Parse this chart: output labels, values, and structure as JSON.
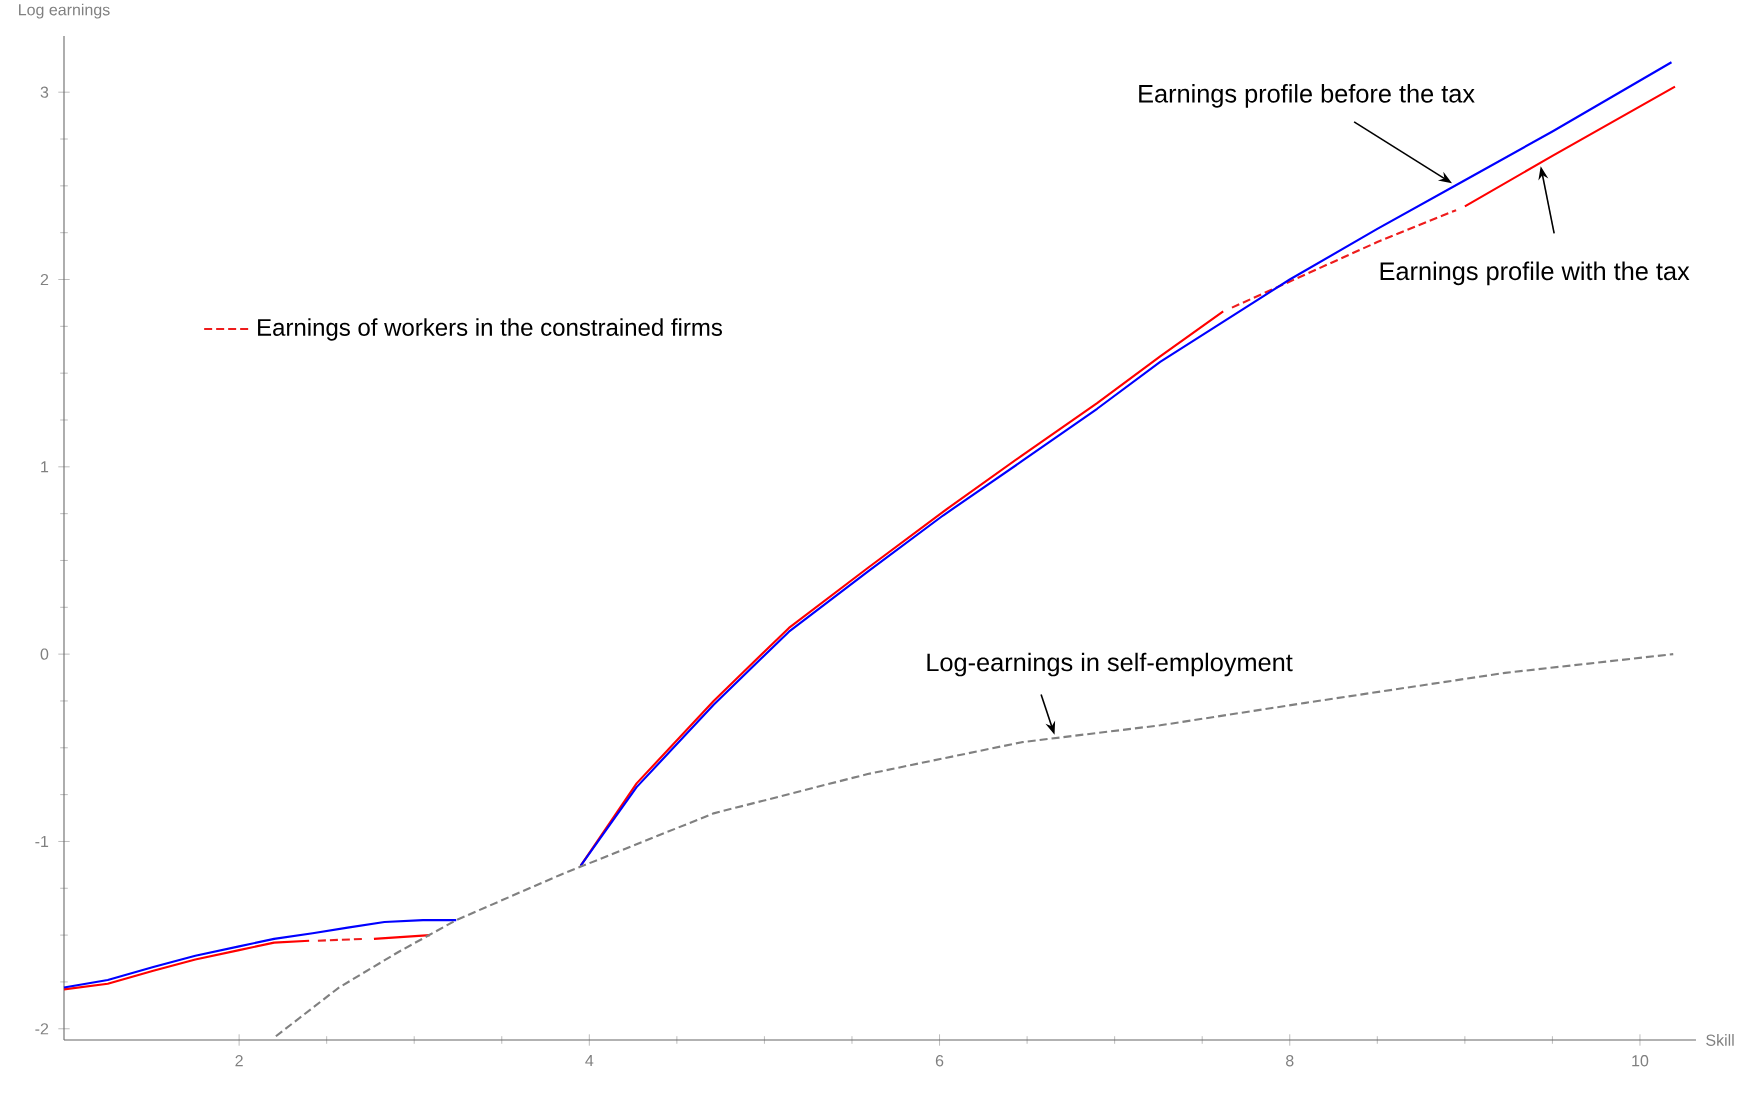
{
  "chart_data": {
    "type": "line",
    "xlabel": "Skill",
    "ylabel": "Log earnings",
    "xlim": [
      1,
      10.32
    ],
    "ylim": [
      -2.06,
      3.3
    ],
    "xticks": [
      2,
      4,
      6,
      8,
      10
    ],
    "yticks": [
      -2,
      -1,
      0,
      1,
      2,
      3
    ],
    "legend": "top left",
    "series": [
      {
        "color": "#ff0000",
        "line_style": "solid",
        "x": [
          1,
          1.25,
          1.51,
          1.75,
          2,
          2.2,
          2.4,
          null,
          2.77,
          3.09,
          null,
          3.95,
          4.27,
          4.71,
          5.14,
          5.59,
          6.02,
          6.47,
          6.9,
          7.26,
          7.62,
          null,
          9.0,
          9.5,
          10.2
        ],
        "values": [
          -1.79,
          -1.76,
          -1.69,
          -1.63,
          -1.58,
          -1.54,
          -1.53,
          null,
          -1.52,
          -1.5,
          null,
          -1.13,
          -0.69,
          -0.25,
          0.14,
          0.46,
          0.76,
          1.06,
          1.34,
          1.59,
          1.83,
          null,
          2.39,
          2.66,
          3.03
        ]
      },
      {
        "name": "Earnings of workers in the constrained firms",
        "color": "#ee1c1c",
        "line_style": "dashed",
        "x": [
          2.45,
          2.72,
          null,
          7.67,
          8.5,
          8.95
        ],
        "values": [
          -1.53,
          -1.52,
          null,
          1.85,
          2.2,
          2.37
        ]
      },
      {
        "color": "#0000ff",
        "line_style": "solid",
        "x": [
          1,
          1.25,
          1.51,
          1.75,
          2,
          2.2,
          2.42,
          2.62,
          2.83,
          3.05,
          3.24,
          null,
          3.95,
          4.27,
          4.71,
          5.14,
          5.59,
          6.02,
          6.47,
          6.9,
          7.26,
          8.0,
          8.5,
          9.0,
          9.5,
          10.18
        ],
        "values": [
          -1.78,
          -1.74,
          -1.67,
          -1.61,
          -1.56,
          -1.52,
          -1.49,
          -1.46,
          -1.43,
          -1.42,
          -1.42,
          null,
          -1.13,
          -0.71,
          -0.27,
          0.12,
          0.44,
          0.74,
          1.03,
          1.31,
          1.56,
          2.0,
          2.27,
          2.53,
          2.79,
          3.16
        ]
      },
      {
        "color": "#808080",
        "line_style": "dashed",
        "x": [
          2.21,
          2.57,
          2.91,
          3.24,
          3.83,
          4.71,
          5.59,
          6.47,
          7.26,
          8.09,
          9.23,
          10.19
        ],
        "values": [
          -2.04,
          -1.78,
          -1.59,
          -1.42,
          -1.18,
          -0.85,
          -0.64,
          -0.47,
          -0.38,
          -0.26,
          -0.1,
          0.0
        ]
      }
    ],
    "annotations": [
      {
        "text": "Earnings profile before the tax",
        "x": 8.95,
        "y": 2.5
      },
      {
        "text": "Earnings profile with the tax",
        "x": 9.43,
        "y": 2.62
      },
      {
        "text": "Log-earnings in self-employment",
        "x": 6.66,
        "y": -0.44
      }
    ]
  }
}
